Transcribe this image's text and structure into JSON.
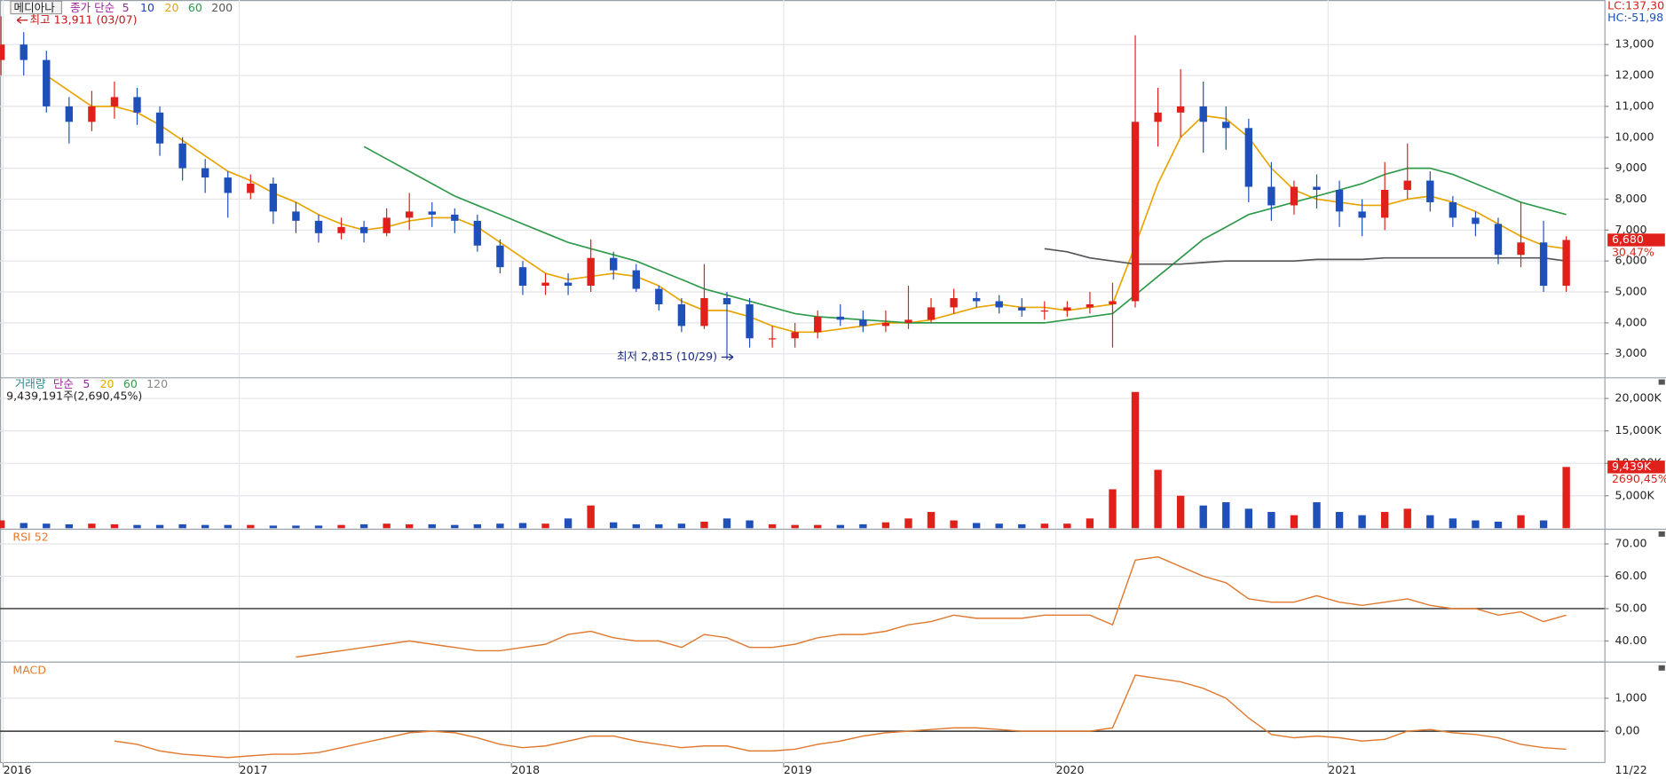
{
  "chart_data": [
    {
      "type": "candlestick",
      "title": "메디아나",
      "legend_label": "종가 단순",
      "legend_extra": [
        {
          "name": "5",
          "color": "#a020a0"
        },
        {
          "name": "10",
          "color": "#1f3fb0"
        }
      ],
      "lc_label": "LC:137,30",
      "hc_label": "HC:-51,98",
      "high_label": "최고 13,911 (03/07)",
      "low_label": "최저 2,815 (10/29)",
      "last_price_label": "6,680",
      "change_label": "30,47%",
      "up_color": "#e0201a",
      "down_color": "#1f4fb8",
      "categories": [
        "2016",
        null,
        null,
        null,
        null,
        null,
        null,
        null,
        null,
        null,
        null,
        "2017",
        null,
        null,
        null,
        null,
        null,
        null,
        null,
        null,
        null,
        null,
        null,
        "2018",
        null,
        null,
        null,
        null,
        null,
        null,
        null,
        null,
        null,
        null,
        null,
        "2019",
        null,
        null,
        null,
        null,
        null,
        null,
        null,
        null,
        null,
        null,
        null,
        "2020",
        null,
        null,
        null,
        null,
        null,
        null,
        null,
        null,
        null,
        null,
        null,
        "2021",
        null,
        null,
        null,
        null,
        null,
        null,
        null,
        null,
        null,
        null
      ],
      "open": [
        12500,
        13000,
        12500,
        11000,
        10500,
        11000,
        11300,
        10800,
        9800,
        9000,
        8700,
        8200,
        8500,
        7600,
        7300,
        6900,
        7100,
        6900,
        7400,
        7600,
        7500,
        7300,
        6500,
        5800,
        5200,
        5300,
        5200,
        6100,
        5700,
        5100,
        4600,
        3900,
        4800,
        4600,
        3500,
        3500,
        3700,
        4200,
        4100,
        3900,
        4000,
        4100,
        4500,
        4800,
        4700,
        4500,
        4400,
        4400,
        4500,
        4600,
        4700,
        10500,
        10800,
        11000,
        10500,
        10300,
        8400,
        7800,
        8400,
        8300,
        7600,
        7400,
        8300,
        8600,
        7900,
        7400,
        7200,
        6200,
        6600,
        5200
      ],
      "high": [
        13911,
        13400,
        12800,
        11300,
        11500,
        11800,
        11600,
        11000,
        10000,
        9300,
        8900,
        8800,
        8700,
        7900,
        7500,
        7400,
        7300,
        7700,
        8200,
        7900,
        7700,
        7500,
        6700,
        6000,
        5600,
        5600,
        6700,
        6300,
        5900,
        5200,
        4800,
        5900,
        5000,
        4800,
        3900,
        4000,
        4400,
        4600,
        4400,
        4400,
        5200,
        4800,
        5100,
        5000,
        4900,
        4800,
        4700,
        4700,
        5000,
        5300,
        13300,
        11600,
        12200,
        11800,
        11000,
        10600,
        9200,
        8600,
        8800,
        8600,
        8000,
        9200,
        9800,
        8900,
        8100,
        7600,
        7400,
        7900,
        7300,
        6800
      ],
      "low": [
        12000,
        12000,
        10800,
        9800,
        10200,
        10600,
        10400,
        9400,
        8600,
        8200,
        7400,
        8000,
        7200,
        6900,
        6600,
        6700,
        6600,
        6800,
        7000,
        7100,
        6900,
        6300,
        5600,
        4900,
        4900,
        4900,
        5000,
        5400,
        5000,
        4400,
        3700,
        3800,
        2815,
        3200,
        3200,
        3200,
        3500,
        3900,
        3700,
        3700,
        3800,
        4000,
        4300,
        4500,
        4300,
        4200,
        4100,
        4200,
        4300,
        3200,
        4500,
        9700,
        10000,
        9500,
        9600,
        7900,
        7300,
        7500,
        7700,
        7100,
        6800,
        7000,
        8000,
        7600,
        7100,
        6800,
        5900,
        5800,
        5000,
        5000
      ],
      "close": [
        13000,
        12500,
        11000,
        10500,
        11000,
        11300,
        10800,
        9800,
        9000,
        8700,
        8200,
        8500,
        7600,
        7300,
        6900,
        7100,
        6900,
        7400,
        7600,
        7500,
        7300,
        6500,
        5800,
        5200,
        5300,
        5200,
        6100,
        5700,
        5100,
        4600,
        3900,
        4800,
        4600,
        3500,
        3500,
        3700,
        4200,
        4100,
        3900,
        4000,
        4100,
        4500,
        4800,
        4700,
        4500,
        4400,
        4400,
        4500,
        4600,
        4700,
        10500,
        10800,
        11000,
        10500,
        10300,
        8400,
        7800,
        8400,
        8300,
        7600,
        7400,
        8300,
        8600,
        7900,
        7400,
        7200,
        6200,
        6600,
        5200,
        6680
      ],
      "series": [
        {
          "name": "20",
          "color": "#e8a400",
          "values": [
            null,
            null,
            12000,
            11500,
            11000,
            11000,
            10800,
            10400,
            9900,
            9400,
            8900,
            8600,
            8200,
            7900,
            7500,
            7200,
            7000,
            7100,
            7300,
            7400,
            7400,
            7100,
            6600,
            6100,
            5600,
            5400,
            5500,
            5600,
            5500,
            5200,
            4700,
            4400,
            4400,
            4200,
            3900,
            3700,
            3700,
            3800,
            3900,
            4000,
            4000,
            4100,
            4300,
            4500,
            4600,
            4500,
            4500,
            4400,
            4500,
            4600,
            6500,
            8500,
            10000,
            10700,
            10600,
            10000,
            9000,
            8300,
            8000,
            7900,
            7800,
            7800,
            8000,
            8100,
            7900,
            7600,
            7200,
            6800,
            6500,
            6400
          ]
        },
        {
          "name": "60",
          "color": "#2e9a4a",
          "values": [
            null,
            null,
            null,
            null,
            null,
            null,
            null,
            null,
            null,
            null,
            null,
            null,
            null,
            null,
            null,
            null,
            9700,
            9300,
            8900,
            8500,
            8100,
            7800,
            7500,
            7200,
            6900,
            6600,
            6400,
            6200,
            6000,
            5700,
            5400,
            5100,
            4900,
            4700,
            4500,
            4300,
            4200,
            4150,
            4100,
            4050,
            4000,
            4000,
            4000,
            4000,
            4000,
            4000,
            4000,
            4100,
            4200,
            4300,
            4900,
            5500,
            6100,
            6700,
            7100,
            7500,
            7700,
            7900,
            8100,
            8300,
            8500,
            8800,
            9000,
            9000,
            8800,
            8500,
            8200,
            7900,
            7700,
            7500
          ]
        },
        {
          "name": "200",
          "color": "#555555",
          "values": [
            null,
            null,
            null,
            null,
            null,
            null,
            null,
            null,
            null,
            null,
            null,
            null,
            null,
            null,
            null,
            null,
            null,
            null,
            null,
            null,
            null,
            null,
            null,
            null,
            null,
            null,
            null,
            null,
            null,
            null,
            null,
            null,
            null,
            null,
            null,
            null,
            null,
            null,
            null,
            null,
            null,
            null,
            null,
            null,
            null,
            null,
            6400,
            6300,
            6100,
            6000,
            5900,
            5900,
            5900,
            5950,
            6000,
            6000,
            6000,
            6000,
            6050,
            6050,
            6050,
            6100,
            6100,
            6100,
            6100,
            6100,
            6100,
            6100,
            6100,
            6000
          ]
        }
      ],
      "ylim": [
        2240,
        14440
      ],
      "yticks": [
        {
          "value": 3000,
          "label": "3,000"
        },
        {
          "value": 4000,
          "label": "4,000"
        },
        {
          "value": 5000,
          "label": "5,000"
        },
        {
          "value": 6000,
          "label": "6,000"
        },
        {
          "value": 7000,
          "label": "7,000"
        },
        {
          "value": 8000,
          "label": "8,000"
        },
        {
          "value": 9000,
          "label": "9,000"
        },
        {
          "value": 10000,
          "label": "10,000"
        },
        {
          "value": 11000,
          "label": "11,000"
        },
        {
          "value": 12000,
          "label": "12,000"
        },
        {
          "value": 13000,
          "label": "13,000"
        }
      ],
      "grid": true
    },
    {
      "type": "bar",
      "title": "거래량",
      "legend_label": "단순",
      "legend_extra": [
        {
          "name": "5",
          "color": "#a020a0"
        },
        {
          "name": "20",
          "color": "#e8a400"
        },
        {
          "name": "60",
          "color": "#2e9a4a"
        },
        {
          "name": "120",
          "color": "#888888"
        }
      ],
      "info_label": "9,439,191주(2,690,45%)",
      "last_value_label": "9,439K",
      "change_label": "2690,45%",
      "values": [
        1200,
        800,
        700,
        600,
        700,
        600,
        500,
        500,
        600,
        500,
        500,
        500,
        400,
        400,
        400,
        500,
        600,
        700,
        600,
        600,
        500,
        600,
        700,
        800,
        700,
        1500,
        3500,
        900,
        600,
        600,
        700,
        1000,
        1500,
        1200,
        600,
        500,
        500,
        500,
        600,
        900,
        1500,
        2500,
        1200,
        800,
        700,
        600,
        700,
        700,
        1500,
        6000,
        21000,
        9000,
        5000,
        3500,
        4000,
        3000,
        2500,
        2000,
        4000,
        2500,
        2000,
        2500,
        3000,
        2000,
        1500,
        1200,
        1000,
        2000,
        1200,
        9439
      ],
      "ylim": [
        0,
        23100
      ],
      "yticks": [
        {
          "value": 5000,
          "label": "5,000K"
        },
        {
          "value": 10000,
          "label": "10,000K"
        },
        {
          "value": 15000,
          "label": "15,000K"
        },
        {
          "value": 20000,
          "label": "20,000K"
        }
      ],
      "grid": true
    },
    {
      "type": "line",
      "title": "RSI 52",
      "color": "#e07a30",
      "values": [
        null,
        null,
        null,
        null,
        null,
        null,
        null,
        null,
        null,
        null,
        null,
        null,
        null,
        35,
        36,
        37,
        38,
        39,
        40,
        39,
        38,
        37,
        37,
        38,
        39,
        42,
        43,
        41,
        40,
        40,
        38,
        42,
        41,
        38,
        38,
        39,
        41,
        42,
        42,
        43,
        45,
        46,
        48,
        47,
        47,
        47,
        48,
        48,
        48,
        45,
        65,
        66,
        63,
        60,
        58,
        53,
        52,
        52,
        54,
        52,
        51,
        52,
        53,
        51,
        50,
        50,
        48,
        49,
        46,
        48
      ],
      "reference_line": 50,
      "ylim": [
        33.8,
        74.2
      ],
      "yticks": [
        {
          "value": 40,
          "label": "40.00"
        },
        {
          "value": 50,
          "label": "50.00"
        },
        {
          "value": 60,
          "label": "60.00"
        },
        {
          "value": 70,
          "label": "70.00"
        }
      ],
      "grid": true
    },
    {
      "type": "line",
      "title": "MACD",
      "color": "#e07a30",
      "x_end_label": "11/22",
      "values": [
        null,
        null,
        null,
        null,
        null,
        -300,
        -400,
        -600,
        -700,
        -750,
        -800,
        -750,
        -700,
        -700,
        -650,
        -500,
        -350,
        -200,
        -50,
        0,
        -50,
        -200,
        -400,
        -500,
        -450,
        -300,
        -150,
        -150,
        -300,
        -400,
        -500,
        -450,
        -450,
        -600,
        -600,
        -550,
        -400,
        -300,
        -150,
        -50,
        0,
        50,
        100,
        100,
        50,
        0,
        0,
        0,
        0,
        100,
        1700,
        1600,
        1500,
        1300,
        1000,
        400,
        -100,
        -200,
        -150,
        -200,
        -300,
        -250,
        0,
        50,
        -50,
        -100,
        -200,
        -400,
        -500,
        -550
      ],
      "reference_line": 0,
      "ylim": [
        -968,
        2065
      ],
      "yticks": [
        {
          "value": 0,
          "label": "0,00"
        },
        {
          "value": 1000,
          "label": "1,000"
        }
      ],
      "grid": true
    }
  ]
}
